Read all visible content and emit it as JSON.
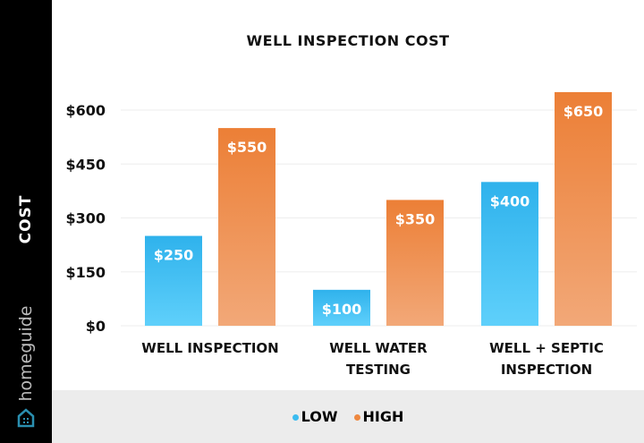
{
  "sidebar": {
    "axis_label": "COST",
    "brand": "homeguide"
  },
  "chart_data": {
    "type": "bar",
    "title": "WELL INSPECTION COST",
    "ylabel": "COST",
    "categories": [
      "WELL INSPECTION",
      "WELL WATER TESTING",
      "WELL + SEPTIC INSPECTION"
    ],
    "category_lines": [
      [
        "WELL INSPECTION"
      ],
      [
        "WELL WATER",
        "TESTING"
      ],
      [
        "WELL + SEPTIC",
        "INSPECTION"
      ]
    ],
    "series": [
      {
        "name": "LOW",
        "values": [
          250,
          100,
          400
        ],
        "labels": [
          "$250",
          "$100",
          "$400"
        ],
        "color": "#3bbcf0"
      },
      {
        "name": "HIGH",
        "values": [
          550,
          350,
          650
        ],
        "labels": [
          "$550",
          "$350",
          "$650"
        ],
        "color": "#ee8840"
      }
    ],
    "ylim": [
      0,
      650
    ],
    "yticks": [
      0,
      150,
      300,
      450,
      600
    ],
    "ytick_labels": [
      "$0",
      "$150",
      "$300",
      "$450",
      "$600"
    ],
    "grid": true,
    "legend_position": "bottom"
  }
}
